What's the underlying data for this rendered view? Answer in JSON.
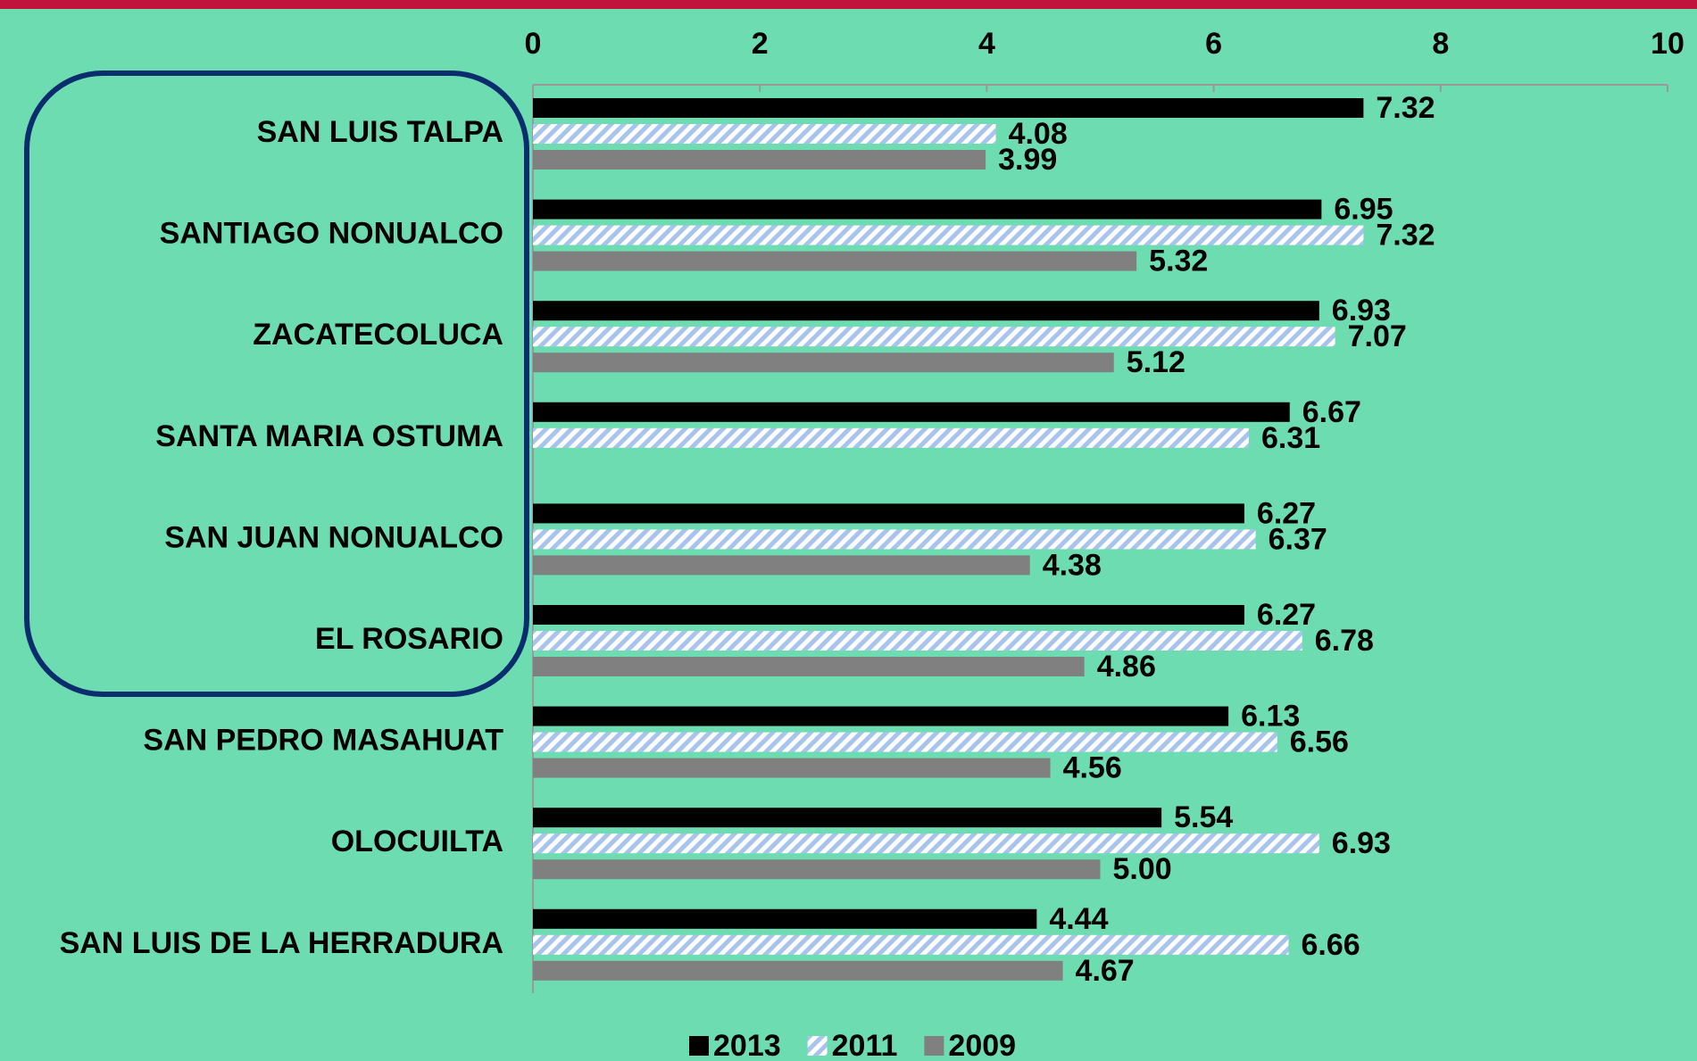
{
  "chart_data": {
    "type": "bar",
    "orientation": "horizontal",
    "categories": [
      "SAN LUIS TALPA",
      "SANTIAGO NONUALCO",
      "ZACATECOLUCA",
      "SANTA MARIA OSTUMA",
      "SAN JUAN NONUALCO",
      "EL ROSARIO",
      "SAN PEDRO MASAHUAT",
      "OLOCUILTA",
      "SAN LUIS DE LA HERRADURA"
    ],
    "series": [
      {
        "name": "2013",
        "color": "#000000",
        "hatch": false,
        "values": [
          7.32,
          6.95,
          6.93,
          6.67,
          6.27,
          6.27,
          6.13,
          5.54,
          4.44
        ]
      },
      {
        "name": "2011",
        "color": "#a9c4ec",
        "hatch": true,
        "values": [
          4.08,
          7.32,
          7.07,
          6.31,
          6.37,
          6.78,
          6.56,
          6.93,
          6.66
        ]
      },
      {
        "name": "2009",
        "color": "#808080",
        "hatch": false,
        "values": [
          3.99,
          5.32,
          5.12,
          null,
          4.38,
          4.86,
          4.56,
          5.0,
          4.67
        ],
        "value_labels": [
          "3.99",
          "5.32",
          "5.12",
          null,
          "4.38",
          "4.86",
          "4.56",
          "5.00",
          "4.67"
        ]
      }
    ],
    "xlim": [
      0,
      10
    ],
    "xticks": [
      0,
      2,
      4,
      6,
      8,
      10
    ],
    "legend": "bottom"
  }
}
